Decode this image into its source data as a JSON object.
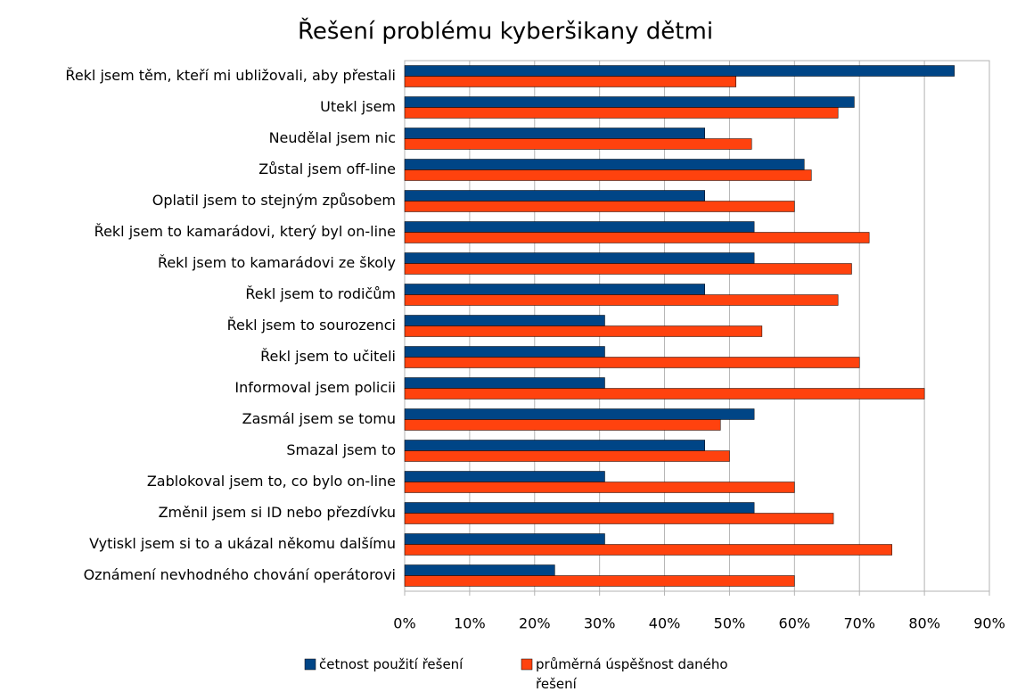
{
  "chart_data": {
    "type": "bar",
    "orientation": "horizontal",
    "title": "Řešení problému kyberšikany dětmi",
    "categories": [
      "Řekl jsem těm, kteří mi ubližovali, aby přestali",
      "Utekl jsem",
      "Neudělal jsem nic",
      "Zůstal jsem off-line",
      "Oplatil jsem to stejným způsobem",
      "Řekl jsem to kamarádovi, který byl on-line",
      "Řekl jsem to kamarádovi ze školy",
      "Řekl jsem to rodičům",
      "Řekl jsem to sourozenci",
      "Řekl jsem to učiteli",
      "Informoval jsem policii",
      "Zasmál jsem se tomu",
      "Smazal jsem to",
      "Zablokoval jsem to, co bylo on-line",
      "Změnil jsem si ID nebo přezdívku",
      "Vytiskl jsem si to a ukázal někomu dalšímu",
      "Oznámení nevhodného chování operátorovi"
    ],
    "series": [
      {
        "name": "četnost použití řešení",
        "color": "#004586",
        "values": [
          84.6,
          69.2,
          46.2,
          61.5,
          46.2,
          53.8,
          53.8,
          46.2,
          30.8,
          30.8,
          30.8,
          53.8,
          46.2,
          30.8,
          53.8,
          30.8,
          23.1
        ]
      },
      {
        "name": "průměrná úspěšnost daného řešení",
        "color": "#ff420e",
        "values": [
          51,
          66.7,
          53.4,
          62.6,
          60,
          71.5,
          68.8,
          66.7,
          55,
          70,
          80,
          48.6,
          50,
          60,
          66,
          75,
          60
        ]
      }
    ],
    "xlim": [
      0,
      90
    ],
    "xticks": [
      {
        "value": 0,
        "label": "0%"
      },
      {
        "value": 10,
        "label": "10%"
      },
      {
        "value": 20,
        "label": "20%"
      },
      {
        "value": 30,
        "label": "30%"
      },
      {
        "value": 40,
        "label": "40%"
      },
      {
        "value": 50,
        "label": "50%"
      },
      {
        "value": 60,
        "label": "60%"
      },
      {
        "value": 70,
        "label": "70%"
      },
      {
        "value": 80,
        "label": "80%"
      },
      {
        "value": 90,
        "label": "90%"
      }
    ],
    "grid": true,
    "legend": "bottom"
  }
}
